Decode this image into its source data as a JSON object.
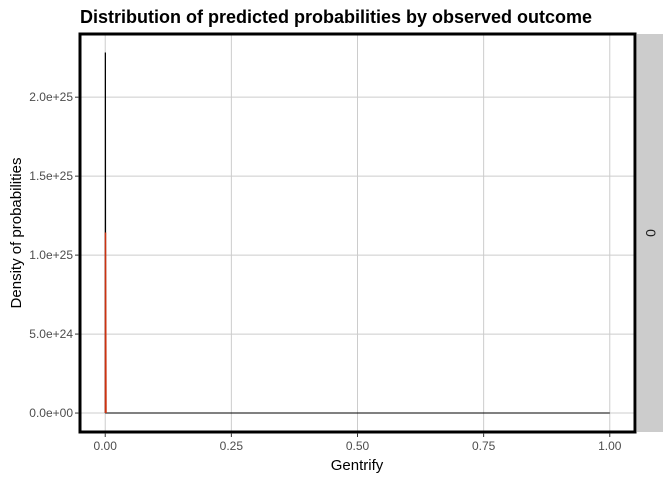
{
  "chart_data": {
    "type": "line",
    "title": "Distribution of predicted probabilities by observed outcome",
    "xlabel": "Gentrify",
    "ylabel": "Density of probabilities",
    "xlim": [
      -0.05,
      1.05
    ],
    "ylim": [
      -1.2e+24,
      2.4e+25
    ],
    "x_ticks": [
      0,
      0.25,
      0.5,
      0.75,
      1.0
    ],
    "x_tick_labels": [
      "0.00",
      "0.25",
      "0.50",
      "0.75",
      "1.00"
    ],
    "y_ticks": [
      0,
      5e+24,
      1e+25,
      1.5e+25,
      2e+25
    ],
    "y_tick_labels": [
      "0.0e+00",
      "5.0e+24",
      "1.0e+25",
      "1.5e+25",
      "2.0e+25"
    ],
    "grid": true,
    "facet_label": "0",
    "series": [
      {
        "color": "#000000",
        "points": [
          [
            0,
            0
          ],
          [
            0.0,
            2.28e+25
          ],
          [
            0.0005,
            2.28e+25
          ],
          [
            0.001,
            0
          ],
          [
            1.0,
            0
          ]
        ]
      },
      {
        "color": "#cc3311",
        "points": [
          [
            0.0,
            0
          ],
          [
            0.0,
            1.14e+25
          ],
          [
            0.001,
            1.14e+25
          ],
          [
            0.002,
            0
          ]
        ]
      }
    ]
  }
}
